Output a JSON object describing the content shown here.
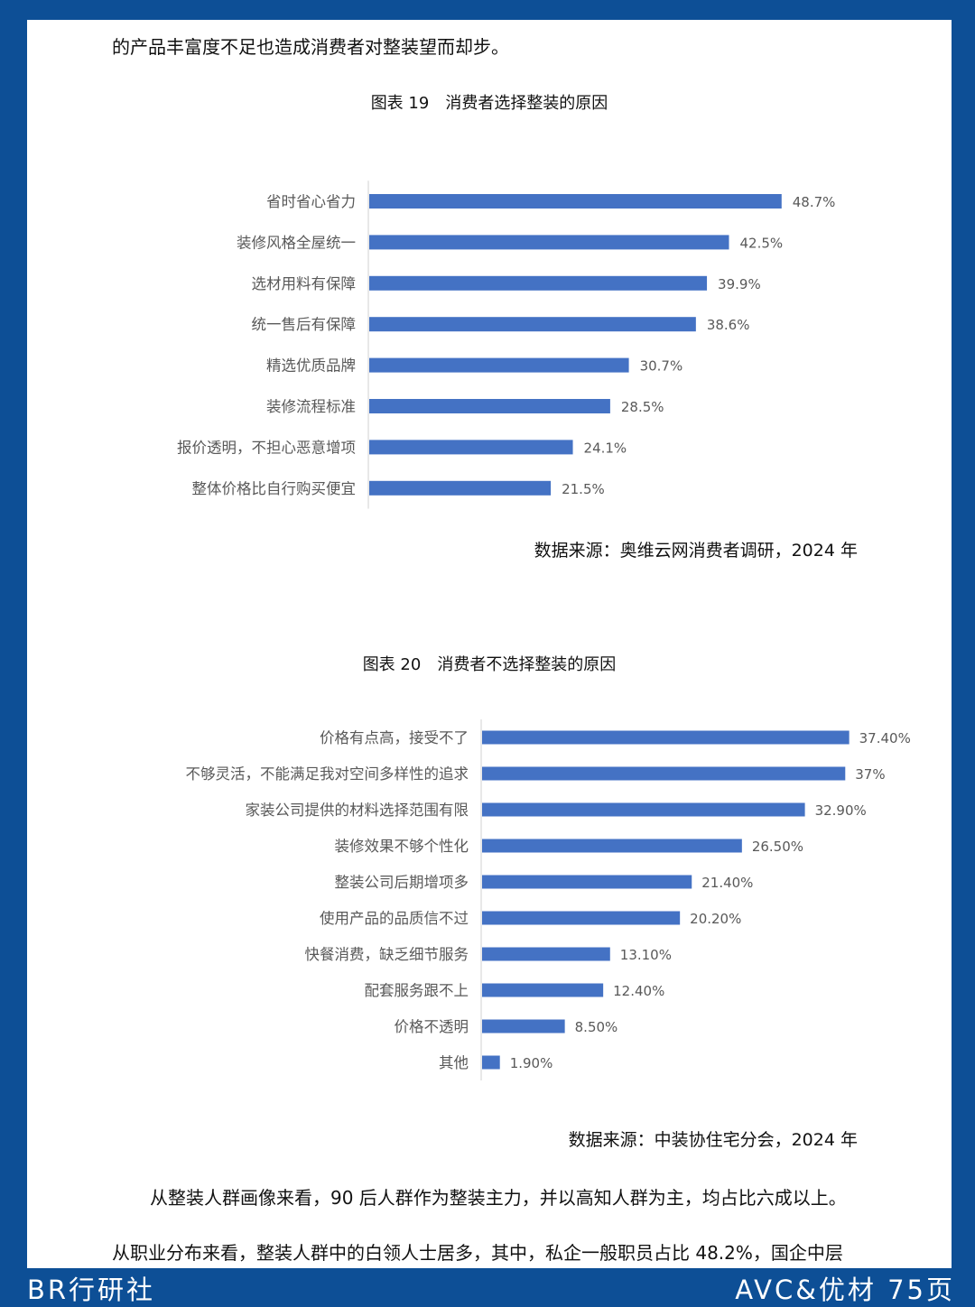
{
  "intro_line": "的产品丰富度不足也造成消费者对整装望而却步。",
  "chart_data": [
    {
      "type": "bar",
      "orientation": "horizontal",
      "title": "图表 19　消费者选择整装的原因",
      "source": "数据来源：奥维云网消费者调研，2024 年",
      "categories": [
        "省时省心省力",
        "装修风格全屋统一",
        "选材用料有保障",
        "统一售后有保障",
        "精选优质品牌",
        "装修流程标准",
        "报价透明，不担心恶意增项",
        "整体价格比自行购买便宜"
      ],
      "values": [
        48.7,
        42.5,
        39.9,
        38.6,
        30.7,
        28.5,
        24.1,
        21.5
      ],
      "value_labels": [
        "48.7%",
        "42.5%",
        "39.9%",
        "38.6%",
        "30.7%",
        "28.5%",
        "24.1%",
        "21.5%"
      ],
      "bar_color": "#4472c4",
      "xlim": [
        0,
        50
      ],
      "grid": false,
      "legend": "none"
    },
    {
      "type": "bar",
      "orientation": "horizontal",
      "title": "图表 20　消费者不选择整装的原因",
      "source": "数据来源：中装协住宅分会，2024 年",
      "categories": [
        "价格有点高，接受不了",
        "不够灵活，不能满足我对空间多样性的追求",
        "家装公司提供的材料选择范围有限",
        "装修效果不够个性化",
        "整装公司后期增项多",
        "使用产品的品质信不过",
        "快餐消费，缺乏细节服务",
        "配套服务跟不上",
        "价格不透明",
        "其他"
      ],
      "values": [
        37.4,
        37,
        32.9,
        26.5,
        21.4,
        20.2,
        13.1,
        12.4,
        8.5,
        1.9
      ],
      "value_labels": [
        "37.40%",
        "37%",
        "32.90%",
        "26.50%",
        "21.40%",
        "20.20%",
        "13.10%",
        "12.40%",
        "8.50%",
        "1.90%"
      ],
      "bar_color": "#4472c4",
      "xlim": [
        0,
        37.8
      ],
      "grid": false,
      "legend": "none"
    }
  ],
  "para1": "从整装人群画像来看，90 后人群作为整装主力，并以高知人群为主，均占比六成以上。",
  "para2": "从职业分布来看，整装人群中的白领人士居多，其中，私企一般职员占比 48.2%，国企中层",
  "footer_left": "BR行研社",
  "footer_right": "AVC&优材  75页"
}
